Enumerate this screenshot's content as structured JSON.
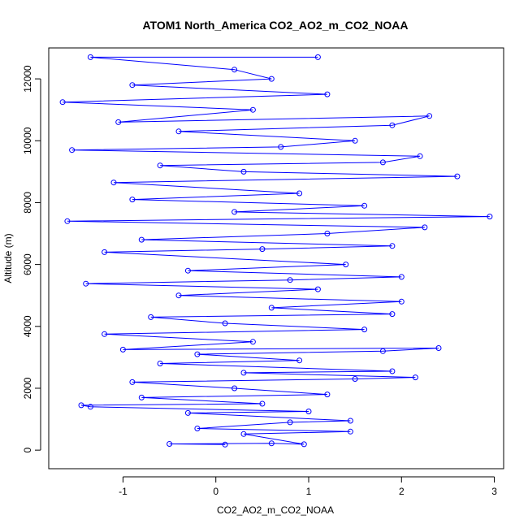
{
  "chart_data": {
    "type": "scatter",
    "title": "ATOM1 North_America CO2_AO2_m_CO2_NOAA",
    "xlabel": "CO2_AO2_m_CO2_NOAA",
    "ylabel": "Altitude (m)",
    "xlim": [
      -1.8,
      3.1
    ],
    "ylim": [
      -600,
      13000
    ],
    "x_ticks": [
      -1,
      0,
      1,
      2,
      3
    ],
    "x_tick_labels": [
      "-1",
      "0",
      "1",
      "2",
      "3"
    ],
    "y_ticks": [
      0,
      2000,
      4000,
      6000,
      8000,
      10000,
      12000
    ],
    "y_tick_labels": [
      "0",
      "2000",
      "4000",
      "6000",
      "8000",
      "10000",
      "12000"
    ],
    "grid": false,
    "series": [
      {
        "style": "points-and-lines",
        "color": "#0000FF",
        "marker": "open-circle",
        "points": [
          {
            "x": 0.1,
            "y": 180
          },
          {
            "x": -0.5,
            "y": 200
          },
          {
            "x": 0.6,
            "y": 220
          },
          {
            "x": 0.95,
            "y": 190
          },
          {
            "x": 0.3,
            "y": 520
          },
          {
            "x": 1.45,
            "y": 600
          },
          {
            "x": -0.2,
            "y": 700
          },
          {
            "x": 0.8,
            "y": 900
          },
          {
            "x": 1.45,
            "y": 950
          },
          {
            "x": -0.3,
            "y": 1200
          },
          {
            "x": 1.0,
            "y": 1250
          },
          {
            "x": -1.35,
            "y": 1400
          },
          {
            "x": -1.45,
            "y": 1450
          },
          {
            "x": 0.5,
            "y": 1500
          },
          {
            "x": -0.8,
            "y": 1700
          },
          {
            "x": 1.2,
            "y": 1800
          },
          {
            "x": 0.2,
            "y": 2000
          },
          {
            "x": -0.9,
            "y": 2200
          },
          {
            "x": 1.5,
            "y": 2300
          },
          {
            "x": 2.15,
            "y": 2350
          },
          {
            "x": 0.3,
            "y": 2500
          },
          {
            "x": 1.9,
            "y": 2550
          },
          {
            "x": -0.6,
            "y": 2800
          },
          {
            "x": 0.9,
            "y": 2900
          },
          {
            "x": -0.2,
            "y": 3100
          },
          {
            "x": 1.8,
            "y": 3200
          },
          {
            "x": 2.4,
            "y": 3300
          },
          {
            "x": -1.0,
            "y": 3250
          },
          {
            "x": 0.4,
            "y": 3500
          },
          {
            "x": -1.2,
            "y": 3750
          },
          {
            "x": 1.6,
            "y": 3900
          },
          {
            "x": 0.1,
            "y": 4100
          },
          {
            "x": -0.7,
            "y": 4300
          },
          {
            "x": 1.9,
            "y": 4400
          },
          {
            "x": 0.6,
            "y": 4600
          },
          {
            "x": 2.0,
            "y": 4800
          },
          {
            "x": -0.4,
            "y": 5000
          },
          {
            "x": 1.1,
            "y": 5200
          },
          {
            "x": -1.4,
            "y": 5380
          },
          {
            "x": 0.8,
            "y": 5500
          },
          {
            "x": 2.0,
            "y": 5600
          },
          {
            "x": -0.3,
            "y": 5800
          },
          {
            "x": 1.4,
            "y": 6000
          },
          {
            "x": -1.2,
            "y": 6400
          },
          {
            "x": 0.5,
            "y": 6500
          },
          {
            "x": 1.9,
            "y": 6600
          },
          {
            "x": -0.8,
            "y": 6800
          },
          {
            "x": 1.2,
            "y": 7000
          },
          {
            "x": 2.25,
            "y": 7200
          },
          {
            "x": -1.6,
            "y": 7400
          },
          {
            "x": 2.95,
            "y": 7550
          },
          {
            "x": 0.2,
            "y": 7700
          },
          {
            "x": 1.6,
            "y": 7900
          },
          {
            "x": -0.9,
            "y": 8100
          },
          {
            "x": 0.9,
            "y": 8300
          },
          {
            "x": -1.1,
            "y": 8650
          },
          {
            "x": 2.6,
            "y": 8850
          },
          {
            "x": 0.3,
            "y": 9000
          },
          {
            "x": -0.6,
            "y": 9200
          },
          {
            "x": 1.8,
            "y": 9300
          },
          {
            "x": 2.2,
            "y": 9500
          },
          {
            "x": -1.55,
            "y": 9700
          },
          {
            "x": 0.7,
            "y": 9800
          },
          {
            "x": 1.5,
            "y": 10000
          },
          {
            "x": -0.4,
            "y": 10300
          },
          {
            "x": 1.9,
            "y": 10500
          },
          {
            "x": 2.3,
            "y": 10800
          },
          {
            "x": -1.05,
            "y": 10600
          },
          {
            "x": 0.4,
            "y": 11000
          },
          {
            "x": -1.65,
            "y": 11250
          },
          {
            "x": 1.2,
            "y": 11500
          },
          {
            "x": -0.9,
            "y": 11800
          },
          {
            "x": 0.6,
            "y": 12000
          },
          {
            "x": 0.2,
            "y": 12300
          },
          {
            "x": -1.35,
            "y": 12700
          },
          {
            "x": 1.1,
            "y": 12700
          }
        ]
      }
    ]
  }
}
